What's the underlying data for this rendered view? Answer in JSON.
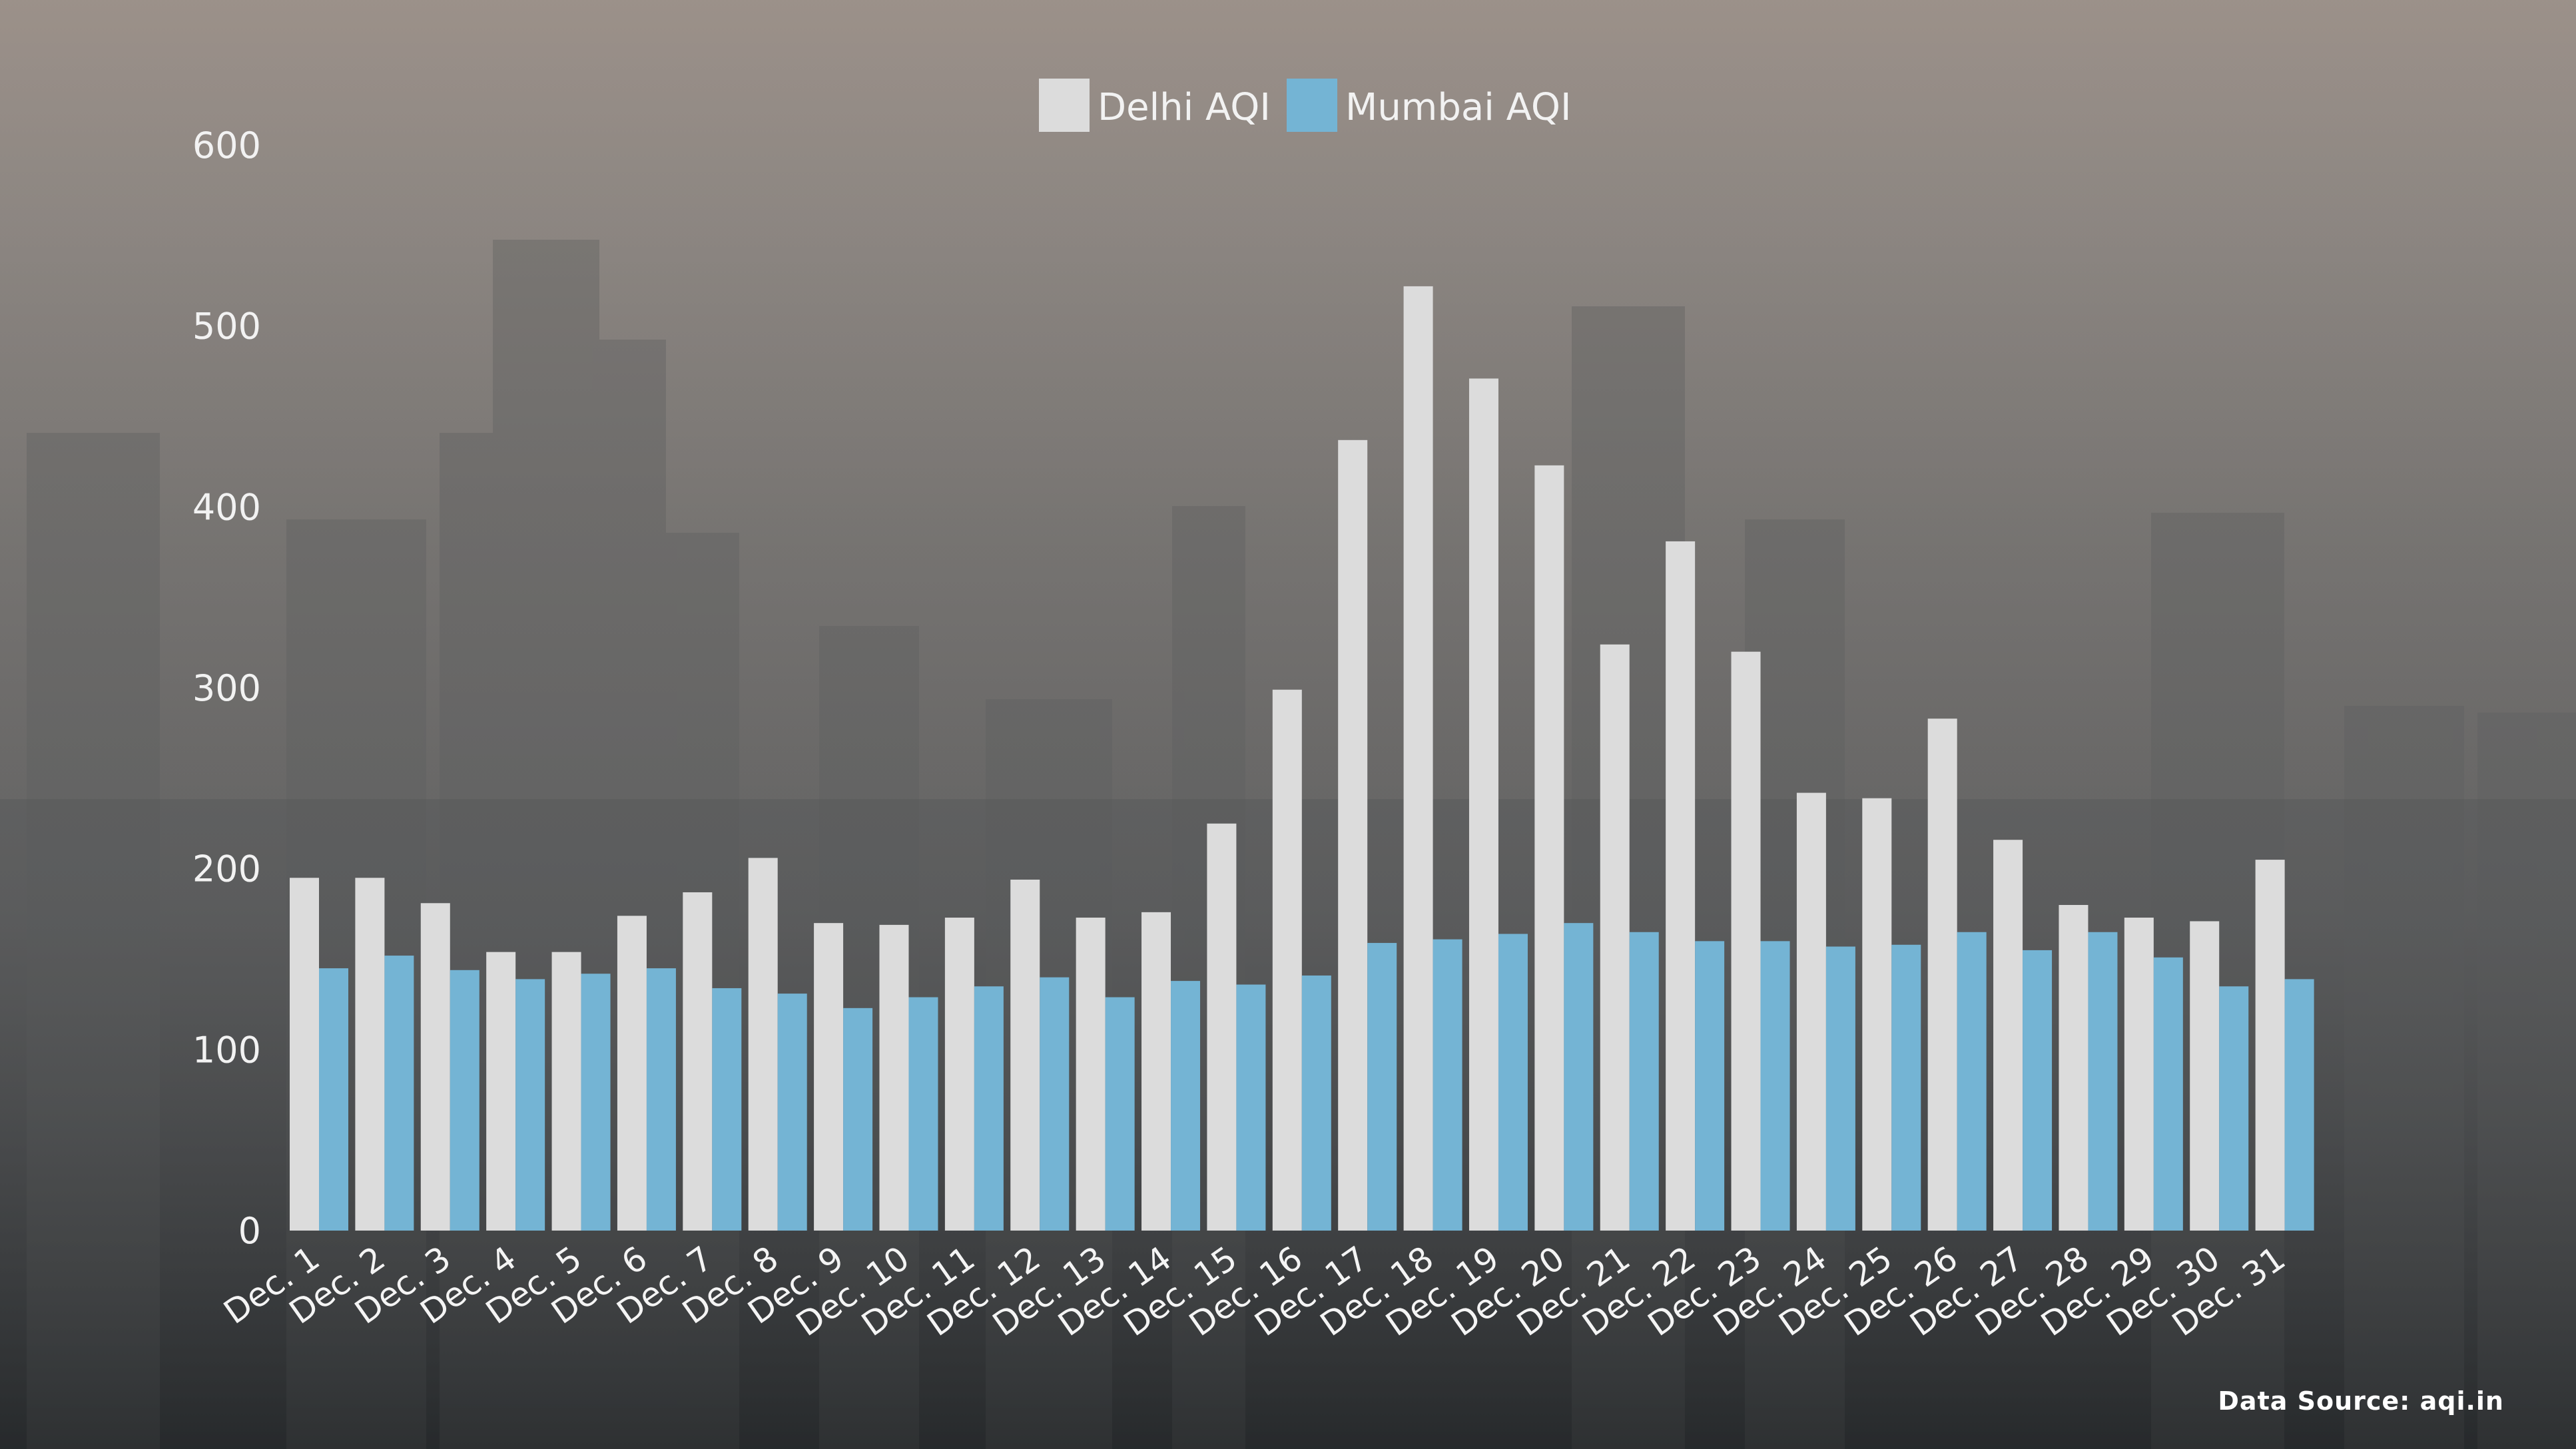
{
  "chart_data": {
    "type": "bar",
    "categories": [
      "Dec. 1",
      "Dec. 2",
      "Dec. 3",
      "Dec. 4",
      "Dec. 5",
      "Dec. 6",
      "Dec. 7",
      "Dec. 8",
      "Dec. 9",
      "Dec. 10",
      "Dec. 11",
      "Dec. 12",
      "Dec. 13",
      "Dec. 14",
      "Dec. 15",
      "Dec. 16",
      "Dec. 17",
      "Dec. 18",
      "Dec. 19",
      "Dec. 20",
      "Dec. 21",
      "Dec. 22",
      "Dec. 23",
      "Dec. 24",
      "Dec. 25",
      "Dec. 26",
      "Dec. 27",
      "Dec. 28",
      "Dec. 29",
      "Dec. 30",
      "Dec. 31"
    ],
    "series": [
      {
        "name": "Delhi AQI",
        "color": "#dcdcdc",
        "values": [
          195,
          195,
          181,
          154,
          154,
          174,
          187,
          206,
          170,
          169,
          173,
          194,
          173,
          176,
          225,
          299,
          437,
          522,
          471,
          423,
          324,
          381,
          320,
          242,
          239,
          283,
          216,
          180,
          173,
          171,
          205
        ]
      },
      {
        "name": "Mumbai AQI",
        "color": "#74b4d4",
        "values": [
          145,
          152,
          144,
          139,
          142,
          145,
          134,
          131,
          123,
          129,
          135,
          140,
          129,
          138,
          136,
          141,
          159,
          161,
          164,
          170,
          165,
          160,
          160,
          157,
          158,
          165,
          155,
          165,
          151,
          135,
          139
        ]
      }
    ],
    "yticks": [
      0,
      100,
      200,
      300,
      400,
      500,
      600
    ],
    "ylim": [
      0,
      600
    ],
    "legend_position": "top-center",
    "grid": false,
    "source": "Data Source: aqi.in"
  }
}
